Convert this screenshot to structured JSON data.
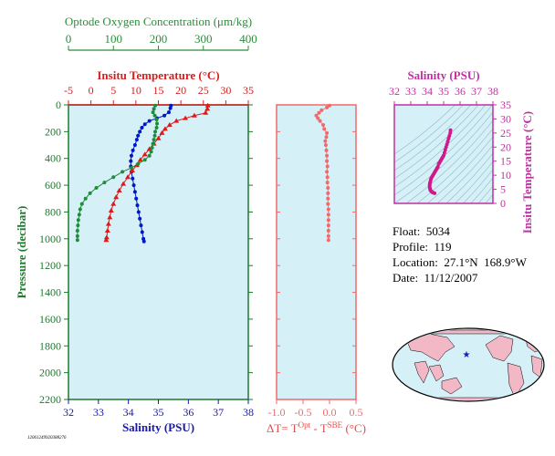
{
  "chart_data": [
    {
      "type": "scatter",
      "panel": "profiles",
      "axes": {
        "oxygen": {
          "title": "Optode Oxygen Concentration (μm/kg)",
          "range": [
            0,
            400
          ],
          "ticks": [
            "0",
            "100",
            "200",
            "300",
            "400"
          ],
          "color": "#2e8b3c"
        },
        "temperature": {
          "title": "Insitu Temperature (°C)",
          "range": [
            -5,
            35
          ],
          "ticks": [
            "-5",
            "0",
            "5",
            "10",
            "15",
            "20",
            "25",
            "30",
            "35"
          ],
          "color": "#d42020"
        },
        "salinity": {
          "title": "Salinity (PSU)",
          "range": [
            32,
            38
          ],
          "ticks": [
            "32",
            "33",
            "34",
            "35",
            "36",
            "37",
            "38"
          ],
          "color": "#1a1aa8"
        },
        "pressure": {
          "title": "Pressure (decibar)",
          "range": [
            0,
            2200
          ],
          "inverted": true,
          "ticks": [
            "0",
            "200",
            "400",
            "600",
            "800",
            "1000",
            "1200",
            "1400",
            "1600",
            "1800",
            "2000",
            "2200"
          ],
          "color": "#1e7a2e"
        }
      },
      "series": [
        {
          "name": "Salinity",
          "color": "#0018c8",
          "marker": "circle",
          "points": [
            [
              35.42,
              5
            ],
            [
              35.4,
              25
            ],
            [
              35.35,
              55
            ],
            [
              35.2,
              80
            ],
            [
              34.95,
              100
            ],
            [
              34.7,
              120
            ],
            [
              34.55,
              145
            ],
            [
              34.45,
              170
            ],
            [
              34.38,
              200
            ],
            [
              34.32,
              230
            ],
            [
              34.28,
              260
            ],
            [
              34.22,
              300
            ],
            [
              34.15,
              340
            ],
            [
              34.1,
              380
            ],
            [
              34.08,
              420
            ],
            [
              34.08,
              460
            ],
            [
              34.1,
              500
            ],
            [
              34.14,
              550
            ],
            [
              34.18,
              600
            ],
            [
              34.22,
              650
            ],
            [
              34.26,
              700
            ],
            [
              34.3,
              750
            ],
            [
              34.34,
              800
            ],
            [
              34.38,
              850
            ],
            [
              34.42,
              900
            ],
            [
              34.46,
              950
            ],
            [
              34.5,
              1000
            ],
            [
              34.52,
              1020
            ]
          ]
        },
        {
          "name": "Temperature",
          "color": "#e01818",
          "marker": "triangle",
          "points": [
            [
              26.0,
              5
            ],
            [
              25.9,
              30
            ],
            [
              25.5,
              60
            ],
            [
              23.0,
              80
            ],
            [
              21.0,
              100
            ],
            [
              19.0,
              120
            ],
            [
              17.5,
              150
            ],
            [
              16.5,
              180
            ],
            [
              15.8,
              210
            ],
            [
              15.0,
              250
            ],
            [
              14.0,
              290
            ],
            [
              13.0,
              330
            ],
            [
              12.0,
              370
            ],
            [
              11.0,
              410
            ],
            [
              10.2,
              450
            ],
            [
              9.2,
              490
            ],
            [
              8.2,
              540
            ],
            [
              7.2,
              590
            ],
            [
              6.3,
              640
            ],
            [
              5.6,
              690
            ],
            [
              5.0,
              740
            ],
            [
              4.5,
              790
            ],
            [
              4.2,
              840
            ],
            [
              3.9,
              890
            ],
            [
              3.7,
              940
            ],
            [
              3.5,
              990
            ],
            [
              3.4,
              1010
            ]
          ]
        },
        {
          "name": "Oxygen",
          "color": "#1e8c3a",
          "marker": "circle",
          "points": [
            [
              193,
              5
            ],
            [
              190,
              30
            ],
            [
              188,
              55
            ],
            [
              192,
              80
            ],
            [
              196,
              110
            ],
            [
              197,
              140
            ],
            [
              196,
              170
            ],
            [
              193,
              200
            ],
            [
              192,
              230
            ],
            [
              190,
              260
            ],
            [
              188,
              290
            ],
            [
              186,
              320
            ],
            [
              184,
              350
            ],
            [
              180,
              380
            ],
            [
              170,
              410
            ],
            [
              155,
              440
            ],
            [
              140,
              470
            ],
            [
              120,
              500
            ],
            [
              100,
              540
            ],
            [
              80,
              580
            ],
            [
              62,
              620
            ],
            [
              48,
              660
            ],
            [
              38,
              700
            ],
            [
              30,
              740
            ],
            [
              26,
              780
            ],
            [
              24,
              820
            ],
            [
              22,
              860
            ],
            [
              21,
              900
            ],
            [
              20,
              940
            ],
            [
              20,
              980
            ],
            [
              20,
              1010
            ]
          ]
        }
      ]
    },
    {
      "type": "scatter",
      "panel": "temperature-difference",
      "xlabel": "ΔT= T",
      "xlabel_sup1": "Opt",
      "xlabel_mid": " - T",
      "xlabel_sup2": "SBE",
      "xlabel_unit": " (°C)",
      "xlim": [
        -1.0,
        0.5
      ],
      "ticks": [
        "-1.0",
        "-0.5",
        "0.0",
        "0.5"
      ],
      "color": "#f06a6a",
      "points": [
        [
          0.0,
          5
        ],
        [
          -0.05,
          20
        ],
        [
          -0.15,
          40
        ],
        [
          -0.2,
          60
        ],
        [
          -0.25,
          80
        ],
        [
          -0.22,
          100
        ],
        [
          -0.18,
          120
        ],
        [
          -0.12,
          150
        ],
        [
          -0.1,
          180
        ],
        [
          -0.05,
          210
        ],
        [
          -0.06,
          240
        ],
        [
          -0.08,
          270
        ],
        [
          -0.07,
          300
        ],
        [
          -0.06,
          340
        ],
        [
          -0.05,
          380
        ],
        [
          -0.05,
          420
        ],
        [
          -0.04,
          460
        ],
        [
          -0.05,
          500
        ],
        [
          -0.04,
          540
        ],
        [
          -0.04,
          580
        ],
        [
          -0.03,
          620
        ],
        [
          -0.03,
          660
        ],
        [
          -0.03,
          700
        ],
        [
          -0.03,
          740
        ],
        [
          -0.02,
          780
        ],
        [
          -0.02,
          820
        ],
        [
          -0.02,
          860
        ],
        [
          -0.02,
          900
        ],
        [
          -0.02,
          940
        ],
        [
          -0.02,
          980
        ],
        [
          -0.02,
          1010
        ]
      ]
    },
    {
      "type": "scatter",
      "panel": "ts-diagram",
      "xlabel": "Salinity (PSU)",
      "ylabel": "Insitu Temperature (°C)",
      "xlim": [
        32,
        38
      ],
      "ylim": [
        0,
        35
      ],
      "xticks": [
        "32",
        "33",
        "34",
        "35",
        "36",
        "37",
        "38"
      ],
      "yticks": [
        "0",
        "5",
        "10",
        "15",
        "20",
        "25",
        "30",
        "35"
      ],
      "color": "#d0188c",
      "points": [
        [
          35.42,
          26
        ],
        [
          35.4,
          25
        ],
        [
          35.35,
          24
        ],
        [
          35.3,
          23
        ],
        [
          35.25,
          22
        ],
        [
          35.2,
          21
        ],
        [
          35.15,
          20
        ],
        [
          35.1,
          19
        ],
        [
          35.05,
          18
        ],
        [
          35.0,
          17
        ],
        [
          34.95,
          16.5
        ],
        [
          34.9,
          16
        ],
        [
          34.85,
          15.5
        ],
        [
          34.8,
          15
        ],
        [
          34.75,
          14.5
        ],
        [
          34.7,
          14
        ],
        [
          34.65,
          13
        ],
        [
          34.6,
          12.5
        ],
        [
          34.55,
          12
        ],
        [
          34.5,
          11.5
        ],
        [
          34.45,
          11
        ],
        [
          34.4,
          10.5
        ],
        [
          34.35,
          10
        ],
        [
          34.3,
          9.5
        ],
        [
          34.25,
          9
        ],
        [
          34.22,
          8.5
        ],
        [
          34.2,
          8
        ],
        [
          34.18,
          7.5
        ],
        [
          34.16,
          7
        ],
        [
          34.15,
          6.5
        ],
        [
          34.15,
          6
        ],
        [
          34.16,
          5.5
        ],
        [
          34.18,
          5
        ],
        [
          34.2,
          4.6
        ],
        [
          34.25,
          4.3
        ],
        [
          34.3,
          4.0
        ],
        [
          34.35,
          3.8
        ],
        [
          34.45,
          3.6
        ]
      ]
    }
  ],
  "float_info": {
    "float": "Float:  5034",
    "profile": "Profile:  119",
    "location": "Location:  27.1°N  168.9°W",
    "date": "Date:  11/12/2007"
  },
  "footer_id": "12061249920388276"
}
